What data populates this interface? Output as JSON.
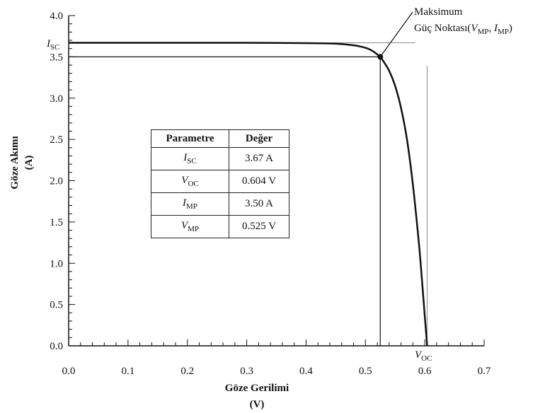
{
  "chart_data": {
    "type": "line",
    "xlabel": "Göze Gerilimi",
    "xlabel_unit": "(V)",
    "ylabel": "Göze Akımı",
    "ylabel_unit": "(A)",
    "xlim": [
      0.0,
      0.7
    ],
    "ylim": [
      0.0,
      4.0
    ],
    "x_ticks": [
      "0.0",
      "0.1",
      "0.2",
      "0.3",
      "0.4",
      "0.5",
      "0.6",
      "0.7"
    ],
    "y_ticks": [
      "0.0",
      "0.5",
      "1.0",
      "1.5",
      "2.0",
      "2.5",
      "3.0",
      "3.5",
      "4.0"
    ],
    "series": [
      {
        "x": [
          0.0,
          0.1,
          0.2,
          0.3,
          0.4,
          0.45,
          0.48,
          0.5,
          0.51,
          0.52,
          0.525,
          0.53,
          0.54,
          0.55,
          0.56,
          0.57,
          0.58,
          0.59,
          0.595,
          0.6,
          0.604
        ],
        "y": [
          3.67,
          3.67,
          3.67,
          3.67,
          3.666,
          3.66,
          3.64,
          3.61,
          3.58,
          3.53,
          3.5,
          3.45,
          3.33,
          3.15,
          2.88,
          2.5,
          1.95,
          1.25,
          0.82,
          0.36,
          0.0
        ]
      }
    ],
    "isc_label": "I",
    "isc_sub": "SC",
    "voc_label": "V",
    "voc_sub": "OC",
    "isc_value": 3.67,
    "voc_value": 0.604,
    "mpp": {
      "x": 0.525,
      "y": 3.5
    },
    "annotation": {
      "line1": "Maksimum",
      "line2_prefix": "Güç Noktası(",
      "v": "V",
      "v_sub": "MP",
      "comma": ", ",
      "i": "I",
      "i_sub": "MP",
      "suffix": ")"
    },
    "table": {
      "headers": [
        "Parametre",
        "Değer"
      ],
      "rows": [
        {
          "sym": "I",
          "sub": "SC",
          "value": "3.67 A"
        },
        {
          "sym": "V",
          "sub": "OC",
          "value": "0.604 V"
        },
        {
          "sym": "I",
          "sub": "MP",
          "value": "3.50 A"
        },
        {
          "sym": "V",
          "sub": "MP",
          "value": "0.525 V"
        }
      ]
    }
  }
}
